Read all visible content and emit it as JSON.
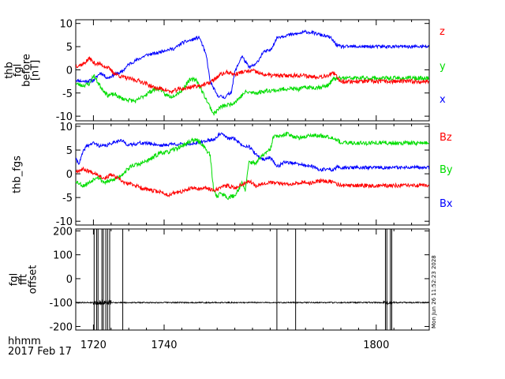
{
  "colors": {
    "red": "#ff0000",
    "green": "#00dd00",
    "blue": "#0000ff",
    "black": "#000000"
  },
  "footer": {
    "format_label": "hhmm",
    "date_label": "2017 Feb 17"
  },
  "stamp": "Mon Jun 26 11:52:23 2028",
  "x_axis": {
    "xlim": [
      1715,
      1815
    ],
    "ticks": [
      1720,
      1740,
      1800
    ],
    "tick_labels": [
      "1720",
      "1740",
      "1800"
    ]
  },
  "chart_data": [
    {
      "type": "line",
      "ylabel_lines": [
        "thb",
        "fgl",
        "before",
        "[nT]"
      ],
      "ylim": [
        -11,
        10.8
      ],
      "yticks": [
        -10,
        -5,
        0,
        5,
        10
      ],
      "ytick_labels": [
        "-10",
        "-5",
        "0",
        "5",
        "10"
      ],
      "legend": [
        {
          "label": "z",
          "color": "#ff0000"
        },
        {
          "label": "y",
          "color": "#00dd00"
        },
        {
          "label": "x",
          "color": "#0000ff"
        }
      ],
      "series": [
        {
          "name": "x",
          "color": "#0000ff",
          "noise": 0.35,
          "seed": 11,
          "points": [
            [
              1715,
              -2.2
            ],
            [
              1717,
              -2.5
            ],
            [
              1720,
              -2.3
            ],
            [
              1722,
              -0.6
            ],
            [
              1724,
              -1.8
            ],
            [
              1726,
              -1.0
            ],
            [
              1728,
              -0.5
            ],
            [
              1730,
              1.2
            ],
            [
              1732,
              2.0
            ],
            [
              1735,
              3.2
            ],
            [
              1738,
              3.6
            ],
            [
              1740,
              4.2
            ],
            [
              1743,
              4.6
            ],
            [
              1745,
              5.8
            ],
            [
              1748,
              6.5
            ],
            [
              1750,
              7.0
            ],
            [
              1751,
              5.0
            ],
            [
              1752,
              2.8
            ],
            [
              1753,
              -2.5
            ],
            [
              1755,
              -5.5
            ],
            [
              1757,
              -6.0
            ],
            [
              1759,
              -4.8
            ],
            [
              1760,
              -0.5
            ],
            [
              1762,
              3.0
            ],
            [
              1764,
              0.5
            ],
            [
              1766,
              1.2
            ],
            [
              1768,
              3.8
            ],
            [
              1770,
              4.2
            ],
            [
              1772,
              7.0
            ],
            [
              1775,
              7.5
            ],
            [
              1778,
              7.8
            ],
            [
              1780,
              8.2
            ],
            [
              1782,
              8.0
            ],
            [
              1785,
              7.4
            ],
            [
              1787,
              7.0
            ],
            [
              1789,
              5.2
            ],
            [
              1790,
              5.0
            ]
          ]
        },
        {
          "name": "y",
          "color": "#00dd00",
          "noise": 0.45,
          "seed": 23,
          "points": [
            [
              1715,
              -3.0
            ],
            [
              1717,
              -3.4
            ],
            [
              1719,
              -3.0
            ],
            [
              1720,
              -1.2
            ],
            [
              1722,
              -3.6
            ],
            [
              1724,
              -5.5
            ],
            [
              1726,
              -5.3
            ],
            [
              1728,
              -6.2
            ],
            [
              1730,
              -6.5
            ],
            [
              1732,
              -6.8
            ],
            [
              1735,
              -5.2
            ],
            [
              1737,
              -4.3
            ],
            [
              1739,
              -4.0
            ],
            [
              1740,
              -5.3
            ],
            [
              1742,
              -5.8
            ],
            [
              1745,
              -4.5
            ],
            [
              1747,
              -2.3
            ],
            [
              1749,
              -2.0
            ],
            [
              1750,
              -3.5
            ],
            [
              1752,
              -6.5
            ],
            [
              1753,
              -8.0
            ],
            [
              1754,
              -9.5
            ],
            [
              1756,
              -8.0
            ],
            [
              1758,
              -7.6
            ],
            [
              1760,
              -7.0
            ],
            [
              1763,
              -4.8
            ],
            [
              1766,
              -5.0
            ],
            [
              1769,
              -4.5
            ],
            [
              1772,
              -4.4
            ],
            [
              1775,
              -4.0
            ],
            [
              1778,
              -4.2
            ],
            [
              1780,
              -3.8
            ],
            [
              1783,
              -3.8
            ],
            [
              1786,
              -3.5
            ],
            [
              1788,
              -2.0
            ],
            [
              1790,
              -1.8
            ]
          ]
        },
        {
          "name": "z",
          "color": "#ff0000",
          "noise": 0.45,
          "seed": 37,
          "points": [
            [
              1715,
              0.8
            ],
            [
              1717,
              1.2
            ],
            [
              1719,
              2.5
            ],
            [
              1720,
              1.5
            ],
            [
              1722,
              1.2
            ],
            [
              1724,
              0.5
            ],
            [
              1726,
              -0.8
            ],
            [
              1728,
              -1.5
            ],
            [
              1730,
              -1.9
            ],
            [
              1733,
              -2.4
            ],
            [
              1735,
              -3.0
            ],
            [
              1737,
              -3.8
            ],
            [
              1740,
              -4.2
            ],
            [
              1742,
              -4.8
            ],
            [
              1744,
              -4.2
            ],
            [
              1746,
              -4.0
            ],
            [
              1748,
              -3.6
            ],
            [
              1750,
              -3.4
            ],
            [
              1752,
              -3.1
            ],
            [
              1754,
              -2.2
            ],
            [
              1756,
              -1.0
            ],
            [
              1758,
              -0.5
            ],
            [
              1760,
              -1.0
            ],
            [
              1762,
              -0.5
            ],
            [
              1765,
              -0.2
            ],
            [
              1768,
              -1.0
            ],
            [
              1770,
              -1.2
            ],
            [
              1773,
              -1.3
            ],
            [
              1776,
              -1.2
            ],
            [
              1779,
              -1.2
            ],
            [
              1782,
              -1.5
            ],
            [
              1785,
              -1.4
            ],
            [
              1788,
              -0.8
            ],
            [
              1790,
              -2.5
            ]
          ]
        }
      ]
    },
    {
      "type": "line",
      "ylabel_lines": [
        "thb_fgs"
      ],
      "ylim": [
        -10.8,
        10.5
      ],
      "yticks": [
        -10,
        -5,
        0,
        5,
        10
      ],
      "ytick_labels": [
        "-10",
        "-5",
        "0",
        "5",
        "10"
      ],
      "legend": [
        {
          "label": "Bz",
          "color": "#ff0000"
        },
        {
          "label": "By",
          "color": "#00dd00"
        },
        {
          "label": "Bx",
          "color": "#0000ff"
        }
      ],
      "series": [
        {
          "name": "Bx",
          "color": "#0000ff",
          "noise": 0.35,
          "seed": 41,
          "points": [
            [
              1715,
              3.0
            ],
            [
              1716,
              2.2
            ],
            [
              1717,
              4.5
            ],
            [
              1718,
              5.8
            ],
            [
              1720,
              6.5
            ],
            [
              1722,
              5.8
            ],
            [
              1724,
              6.0
            ],
            [
              1726,
              6.8
            ],
            [
              1728,
              7.0
            ],
            [
              1730,
              6.0
            ],
            [
              1733,
              6.5
            ],
            [
              1736,
              6.4
            ],
            [
              1739,
              6.0
            ],
            [
              1740,
              6.0
            ],
            [
              1742,
              6.3
            ],
            [
              1745,
              6.2
            ],
            [
              1748,
              6.4
            ],
            [
              1750,
              6.5
            ],
            [
              1752,
              7.0
            ],
            [
              1754,
              7.2
            ],
            [
              1756,
              8.5
            ],
            [
              1758,
              7.5
            ],
            [
              1760,
              7.4
            ],
            [
              1762,
              6.0
            ],
            [
              1764,
              5.8
            ],
            [
              1766,
              4.0
            ],
            [
              1768,
              3.0
            ],
            [
              1770,
              3.5
            ],
            [
              1772,
              1.5
            ],
            [
              1774,
              2.5
            ],
            [
              1776,
              2.3
            ],
            [
              1778,
              2.0
            ],
            [
              1780,
              1.8
            ],
            [
              1782,
              1.5
            ],
            [
              1784,
              0.8
            ],
            [
              1786,
              1.0
            ],
            [
              1788,
              0.8
            ],
            [
              1789,
              1.5
            ],
            [
              1790,
              1.3
            ]
          ]
        },
        {
          "name": "By",
          "color": "#00dd00",
          "noise": 0.45,
          "seed": 53,
          "points": [
            [
              1715,
              -1.5
            ],
            [
              1717,
              -2.5
            ],
            [
              1719,
              -1.8
            ],
            [
              1721,
              -0.5
            ],
            [
              1723,
              -1.8
            ],
            [
              1725,
              -1.5
            ],
            [
              1727,
              -0.8
            ],
            [
              1729,
              0.5
            ],
            [
              1731,
              1.8
            ],
            [
              1733,
              2.0
            ],
            [
              1736,
              3.0
            ],
            [
              1739,
              4.5
            ],
            [
              1741,
              4.5
            ],
            [
              1744,
              5.5
            ],
            [
              1746,
              6.2
            ],
            [
              1748,
              7.2
            ],
            [
              1750,
              6.8
            ],
            [
              1751,
              6.0
            ],
            [
              1753,
              4.0
            ],
            [
              1754,
              -3.5
            ],
            [
              1755,
              -4.8
            ],
            [
              1756,
              -4.0
            ],
            [
              1758,
              -5.0
            ],
            [
              1760,
              -4.6
            ],
            [
              1762,
              -2.0
            ],
            [
              1763,
              -3.5
            ],
            [
              1764,
              2.5
            ],
            [
              1766,
              2.3
            ],
            [
              1768,
              4.0
            ],
            [
              1770,
              5.0
            ],
            [
              1771,
              8.0
            ],
            [
              1773,
              7.8
            ],
            [
              1775,
              8.5
            ],
            [
              1777,
              7.8
            ],
            [
              1779,
              7.5
            ],
            [
              1781,
              8.2
            ],
            [
              1783,
              8.0
            ],
            [
              1785,
              8.0
            ],
            [
              1787,
              7.8
            ],
            [
              1789,
              7.2
            ],
            [
              1790,
              6.5
            ]
          ]
        },
        {
          "name": "Bz",
          "color": "#ff0000",
          "noise": 0.4,
          "seed": 67,
          "points": [
            [
              1715,
              0.5
            ],
            [
              1717,
              1.0
            ],
            [
              1719,
              0.5
            ],
            [
              1721,
              0.0
            ],
            [
              1723,
              -1.0
            ],
            [
              1725,
              -0.2
            ],
            [
              1727,
              -1.0
            ],
            [
              1729,
              -2.0
            ],
            [
              1731,
              -2.2
            ],
            [
              1733,
              -2.8
            ],
            [
              1736,
              -3.5
            ],
            [
              1739,
              -3.8
            ],
            [
              1741,
              -4.5
            ],
            [
              1743,
              -4.0
            ],
            [
              1745,
              -3.8
            ],
            [
              1748,
              -3.0
            ],
            [
              1750,
              -3.2
            ],
            [
              1752,
              -3.0
            ],
            [
              1754,
              -3.5
            ],
            [
              1756,
              -2.8
            ],
            [
              1758,
              -2.5
            ],
            [
              1760,
              -3.0
            ],
            [
              1762,
              -2.2
            ],
            [
              1764,
              -1.5
            ],
            [
              1766,
              -2.5
            ],
            [
              1768,
              -2.0
            ],
            [
              1770,
              -1.8
            ],
            [
              1772,
              -2.0
            ],
            [
              1775,
              -2.2
            ],
            [
              1778,
              -1.8
            ],
            [
              1781,
              -2.0
            ],
            [
              1784,
              -1.5
            ],
            [
              1787,
              -1.6
            ],
            [
              1790,
              -2.5
            ]
          ]
        }
      ]
    },
    {
      "type": "line",
      "ylabel_lines": [
        "fgl",
        "fft",
        "offset"
      ],
      "ylim": [
        -215,
        208
      ],
      "yticks": [
        -200,
        -100,
        0,
        100,
        200
      ],
      "ytick_labels": [
        "-200",
        "-100",
        "0",
        "100",
        "200"
      ],
      "legend": [],
      "baseline": -100,
      "baseline_noise": 2.5,
      "bursts": [
        [
          1720,
          1725,
          10
        ],
        [
          1802,
          1805,
          7
        ]
      ],
      "spikes": [
        1720.2,
        1720.9,
        1721.3,
        1722.4,
        1722.8,
        1723.5,
        1724.0,
        1724.6,
        1728.3,
        1771.9,
        1777.2,
        1802.6,
        1803.0,
        1804.0,
        1804.4
      ],
      "series": [
        {
          "name": "offset",
          "color": "#000000",
          "seed": 79
        }
      ]
    }
  ]
}
